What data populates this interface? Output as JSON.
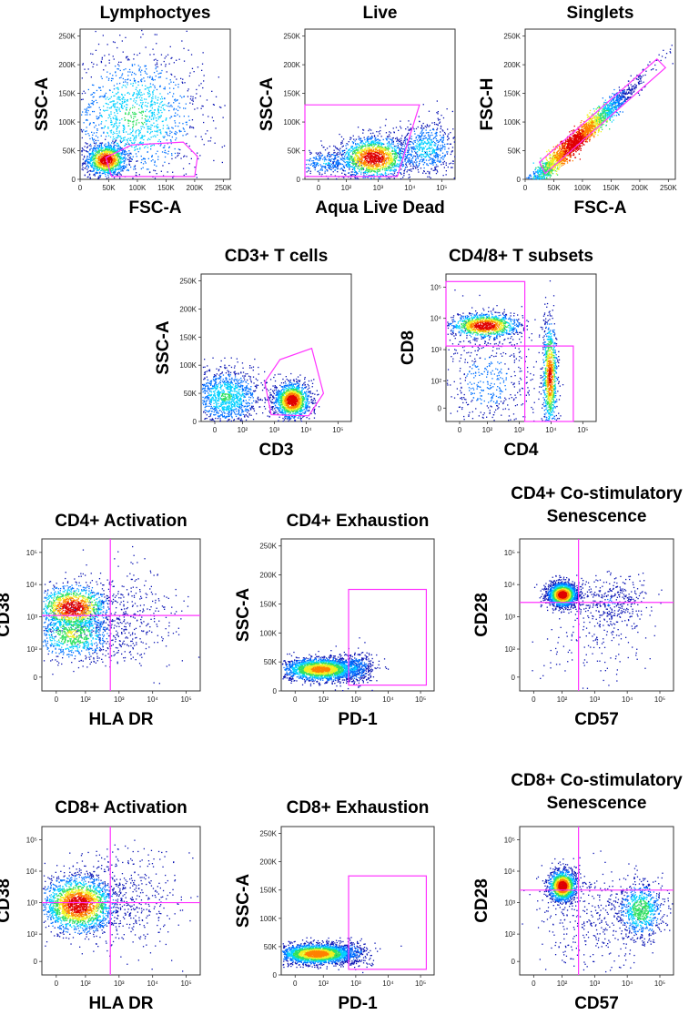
{
  "colors": {
    "gate": "#ff33ff",
    "density_scale": [
      "#0a14b4",
      "#0070ff",
      "#00d0ff",
      "#30e060",
      "#f0f020",
      "#ff8000",
      "#e00000"
    ]
  },
  "chart_data": [
    {
      "id": "lymphocytes",
      "type": "scatter",
      "title": "Lymphoctyes",
      "xlabel": "FSC-A",
      "ylabel": "SSC-A",
      "x_ticks": [
        "0",
        "50K",
        "100K",
        "150K",
        "200K",
        "250K"
      ],
      "y_ticks": [
        "0",
        "50K",
        "100K",
        "150K",
        "200K",
        "250K"
      ],
      "xlim": [
        0,
        262144
      ],
      "ylim": [
        0,
        262144
      ],
      "gates": [
        {
          "shape": "polygon",
          "points": [
            [
              45000,
              38000
            ],
            [
              90000,
              60000
            ],
            [
              180000,
              65000
            ],
            [
              205000,
              40000
            ],
            [
              200000,
              5000
            ],
            [
              55000,
              5000
            ]
          ]
        }
      ],
      "populations": [
        {
          "cx": 45000,
          "cy": 35000,
          "sx": 18000,
          "sy": 14000,
          "weight": 0.45,
          "hot": 1.0
        },
        {
          "cx": 95000,
          "cy": 110000,
          "sx": 60000,
          "sy": 60000,
          "weight": 0.55,
          "hot": 0.45
        }
      ]
    },
    {
      "id": "live",
      "type": "scatter",
      "title": "Live",
      "xlabel": "Aqua Live Dead",
      "ylabel": "SSC-A",
      "x_ticks": [
        "0",
        "10²",
        "10³",
        "10⁴",
        "10⁵"
      ],
      "y_ticks": [
        "0",
        "50K",
        "100K",
        "150K",
        "200K",
        "250K"
      ],
      "x_scale": "logicle",
      "xlim": [
        -50,
        262144
      ],
      "ylim": [
        0,
        262144
      ],
      "gates": [
        {
          "shape": "polygon",
          "points": [
            [
              -50,
              5000
            ],
            [
              -50,
              130000
            ],
            [
              20000,
              130000
            ],
            [
              4000,
              5000
            ]
          ]
        }
      ],
      "populations": [
        {
          "cx": 700,
          "cy": 38000,
          "sx": 0.55,
          "sy": 18000,
          "weight": 0.6,
          "hot": 1.0
        },
        {
          "cx": 30000,
          "cy": 55000,
          "sx": 0.5,
          "sy": 25000,
          "weight": 0.25,
          "hot": 0.35
        },
        {
          "cx": 20,
          "cy": 30000,
          "sx": 0.7,
          "sy": 12000,
          "weight": 0.15,
          "hot": 0.3
        }
      ]
    },
    {
      "id": "singlets",
      "type": "scatter",
      "title": "Singlets",
      "xlabel": "FSC-A",
      "ylabel": "FSC-H",
      "x_ticks": [
        "0",
        "50K",
        "100K",
        "150K",
        "200K",
        "250K"
      ],
      "y_ticks": [
        "0",
        "50K",
        "100K",
        "150K",
        "200K",
        "250K"
      ],
      "xlim": [
        0,
        262144
      ],
      "ylim": [
        0,
        262144
      ],
      "gates": [
        {
          "shape": "polygon",
          "points": [
            [
              25000,
              30000
            ],
            [
              230000,
              210000
            ],
            [
              245000,
              195000
            ],
            [
              35000,
              10000
            ]
          ]
        }
      ],
      "populations": [
        {
          "diag": true,
          "cx": 85000,
          "cy": 65000,
          "sx": 55000,
          "sy": 8000,
          "weight": 1.0,
          "hot": 0.9
        }
      ]
    },
    {
      "id": "cd3",
      "type": "scatter",
      "title": "CD3+ T cells",
      "xlabel": "CD3",
      "ylabel": "SSC-A",
      "x_ticks": [
        "0",
        "10²",
        "10³",
        "10⁴",
        "10⁵"
      ],
      "y_ticks": [
        "0",
        "50K",
        "100K",
        "150K",
        "200K",
        "250K"
      ],
      "x_scale": "logicle",
      "xlim": [
        -50,
        262144
      ],
      "ylim": [
        0,
        262144
      ],
      "gates": [
        {
          "shape": "polygon",
          "points": [
            [
              800,
              12000
            ],
            [
              500,
              70000
            ],
            [
              1500,
              110000
            ],
            [
              15000,
              130000
            ],
            [
              35000,
              50000
            ],
            [
              12000,
              10000
            ]
          ]
        }
      ],
      "populations": [
        {
          "cx": 3500,
          "cy": 38000,
          "sx": 0.28,
          "sy": 16000,
          "weight": 0.55,
          "hot": 1.0
        },
        {
          "cx": 30,
          "cy": 45000,
          "sx": 0.55,
          "sy": 25000,
          "weight": 0.45,
          "hot": 0.45
        }
      ]
    },
    {
      "id": "cd48",
      "type": "scatter",
      "title": "CD4/8+ T subsets",
      "xlabel": "CD4",
      "ylabel": "CD8",
      "x_ticks": [
        "0",
        "10²",
        "10³",
        "10⁴",
        "10⁵"
      ],
      "y_ticks": [
        "0",
        "10²",
        "10³",
        "10⁴",
        "10⁵"
      ],
      "x_scale": "logicle",
      "y_scale": "logicle",
      "xlim": [
        -50,
        262144
      ],
      "ylim": [
        -50,
        262144
      ],
      "gates": [
        {
          "shape": "rect",
          "x": [
            -50,
            1500
          ],
          "y": [
            1300,
            150000
          ]
        },
        {
          "shape": "rect",
          "x": [
            1500,
            50000
          ],
          "y": [
            -50,
            1300
          ]
        }
      ],
      "populations": [
        {
          "cx": 80,
          "cy": 6000,
          "sx": 0.55,
          "sy": 0.2,
          "weight": 0.45,
          "hot": 1.0
        },
        {
          "cx": 9000,
          "cy": 150,
          "sx": 0.12,
          "sy": 0.9,
          "weight": 0.35,
          "hot": 0.9
        },
        {
          "cx": 100,
          "cy": 100,
          "sx": 0.8,
          "sy": 0.9,
          "weight": 0.2,
          "hot": 0.2
        }
      ]
    },
    {
      "id": "cd4act",
      "type": "scatter",
      "title": "CD4+ Activation",
      "xlabel": "HLA DR",
      "ylabel": "CD38",
      "x_ticks": [
        "0",
        "10²",
        "10³",
        "10⁴",
        "10⁵"
      ],
      "y_ticks": [
        "0",
        "10²",
        "10³",
        "10⁴",
        "10⁵"
      ],
      "x_scale": "logicle",
      "y_scale": "logicle",
      "xlim": [
        -50,
        262144
      ],
      "ylim": [
        -50,
        262144
      ],
      "gates": [
        {
          "shape": "quad",
          "x": 550,
          "y": 1100
        }
      ],
      "populations": [
        {
          "cx": 40,
          "cy": 2000,
          "sx": 0.55,
          "sy": 0.35,
          "weight": 0.5,
          "hot": 1.0
        },
        {
          "cx": 40,
          "cy": 300,
          "sx": 0.6,
          "sy": 0.4,
          "weight": 0.35,
          "hot": 0.6
        },
        {
          "cx": 1500,
          "cy": 1000,
          "sx": 0.8,
          "sy": 0.8,
          "weight": 0.15,
          "hot": 0.1
        }
      ]
    },
    {
      "id": "cd4exh",
      "type": "scatter",
      "title": "CD4+ Exhaustion",
      "xlabel": "PD-1",
      "ylabel": "SSC-A",
      "x_ticks": [
        "0",
        "10²",
        "10³",
        "10⁴",
        "10⁵"
      ],
      "y_ticks": [
        "0",
        "50K",
        "100K",
        "150K",
        "200K",
        "250K"
      ],
      "x_scale": "logicle",
      "xlim": [
        -50,
        262144
      ],
      "ylim": [
        0,
        262144
      ],
      "gates": [
        {
          "shape": "rect",
          "x": [
            600,
            150000
          ],
          "y": [
            10000,
            175000
          ]
        }
      ],
      "populations": [
        {
          "cx": 80,
          "cy": 38000,
          "sx": 0.6,
          "sy": 10000,
          "weight": 0.85,
          "hot": 0.8
        },
        {
          "cx": 800,
          "cy": 40000,
          "sx": 0.35,
          "sy": 14000,
          "weight": 0.15,
          "hot": 0.3
        }
      ]
    },
    {
      "id": "cd4sen",
      "type": "scatter",
      "title": "CD4+ Co-stimulatory Senescence",
      "title_lines": [
        "CD4+ Co-stimulatory",
        "Senescence"
      ],
      "xlabel": "CD57",
      "ylabel": "CD28",
      "x_ticks": [
        "0",
        "10²",
        "10³",
        "10⁴",
        "10⁵"
      ],
      "y_ticks": [
        "0",
        "10²",
        "10³",
        "10⁴",
        "10⁵"
      ],
      "x_scale": "logicle",
      "y_scale": "logicle",
      "xlim": [
        -50,
        262144
      ],
      "ylim": [
        -50,
        262144
      ],
      "gates": [
        {
          "shape": "quad",
          "x": 320,
          "y": 2800
        }
      ],
      "populations": [
        {
          "cx": 100,
          "cy": 5000,
          "sx": 0.22,
          "sy": 0.18,
          "weight": 0.8,
          "hot": 1.0
        },
        {
          "cx": 3000,
          "cy": 3000,
          "sx": 0.6,
          "sy": 0.4,
          "weight": 0.15,
          "hot": 0.15
        },
        {
          "cx": 1000,
          "cy": 200,
          "sx": 0.9,
          "sy": 0.8,
          "weight": 0.05,
          "hot": 0.05
        }
      ]
    },
    {
      "id": "cd8act",
      "type": "scatter",
      "title": "CD8+ Activation",
      "xlabel": "HLA DR",
      "ylabel": "CD38",
      "x_ticks": [
        "0",
        "10²",
        "10³",
        "10⁴",
        "10⁵"
      ],
      "y_ticks": [
        "0",
        "10²",
        "10³",
        "10⁴",
        "10⁵"
      ],
      "x_scale": "logicle",
      "y_scale": "logicle",
      "xlim": [
        -50,
        262144
      ],
      "ylim": [
        -50,
        262144
      ],
      "gates": [
        {
          "shape": "quad",
          "x": 550,
          "y": 1000
        }
      ],
      "populations": [
        {
          "cx": 60,
          "cy": 900,
          "sx": 0.55,
          "sy": 0.45,
          "weight": 0.85,
          "hot": 1.0
        },
        {
          "cx": 2000,
          "cy": 1000,
          "sx": 0.8,
          "sy": 0.8,
          "weight": 0.15,
          "hot": 0.1
        }
      ]
    },
    {
      "id": "cd8exh",
      "type": "scatter",
      "title": "CD8+ Exhaustion",
      "xlabel": "PD-1",
      "ylabel": "SSC-A",
      "x_ticks": [
        "0",
        "10²",
        "10³",
        "10⁴",
        "10⁵"
      ],
      "y_ticks": [
        "0",
        "50K",
        "100K",
        "150K",
        "200K",
        "250K"
      ],
      "x_scale": "logicle",
      "xlim": [
        -50,
        262144
      ],
      "ylim": [
        0,
        262144
      ],
      "gates": [
        {
          "shape": "rect",
          "x": [
            600,
            150000
          ],
          "y": [
            10000,
            175000
          ]
        }
      ],
      "populations": [
        {
          "cx": 60,
          "cy": 38000,
          "sx": 0.6,
          "sy": 9000,
          "weight": 0.9,
          "hot": 0.85
        },
        {
          "cx": 600,
          "cy": 40000,
          "sx": 0.35,
          "sy": 12000,
          "weight": 0.1,
          "hot": 0.25
        }
      ]
    },
    {
      "id": "cd8sen",
      "type": "scatter",
      "title": "CD8+ Co-stimulatory Senescence",
      "title_lines": [
        "CD8+ Co-stimulatory",
        "Senescence"
      ],
      "xlabel": "CD57",
      "ylabel": "CD28",
      "x_ticks": [
        "0",
        "10²",
        "10³",
        "10⁴",
        "10⁵"
      ],
      "y_ticks": [
        "0",
        "10²",
        "10³",
        "10⁴",
        "10⁵"
      ],
      "x_scale": "logicle",
      "y_scale": "logicle",
      "xlim": [
        -50,
        262144
      ],
      "ylim": [
        -50,
        262144
      ],
      "gates": [
        {
          "shape": "quad",
          "x": 320,
          "y": 2500
        }
      ],
      "populations": [
        {
          "cx": 100,
          "cy": 3500,
          "sx": 0.22,
          "sy": 0.25,
          "weight": 0.55,
          "hot": 1.0
        },
        {
          "cx": 25000,
          "cy": 600,
          "sx": 0.35,
          "sy": 0.45,
          "weight": 0.3,
          "hot": 0.55
        },
        {
          "cx": 1000,
          "cy": 300,
          "sx": 0.9,
          "sy": 0.8,
          "weight": 0.15,
          "hot": 0.1
        }
      ]
    }
  ]
}
